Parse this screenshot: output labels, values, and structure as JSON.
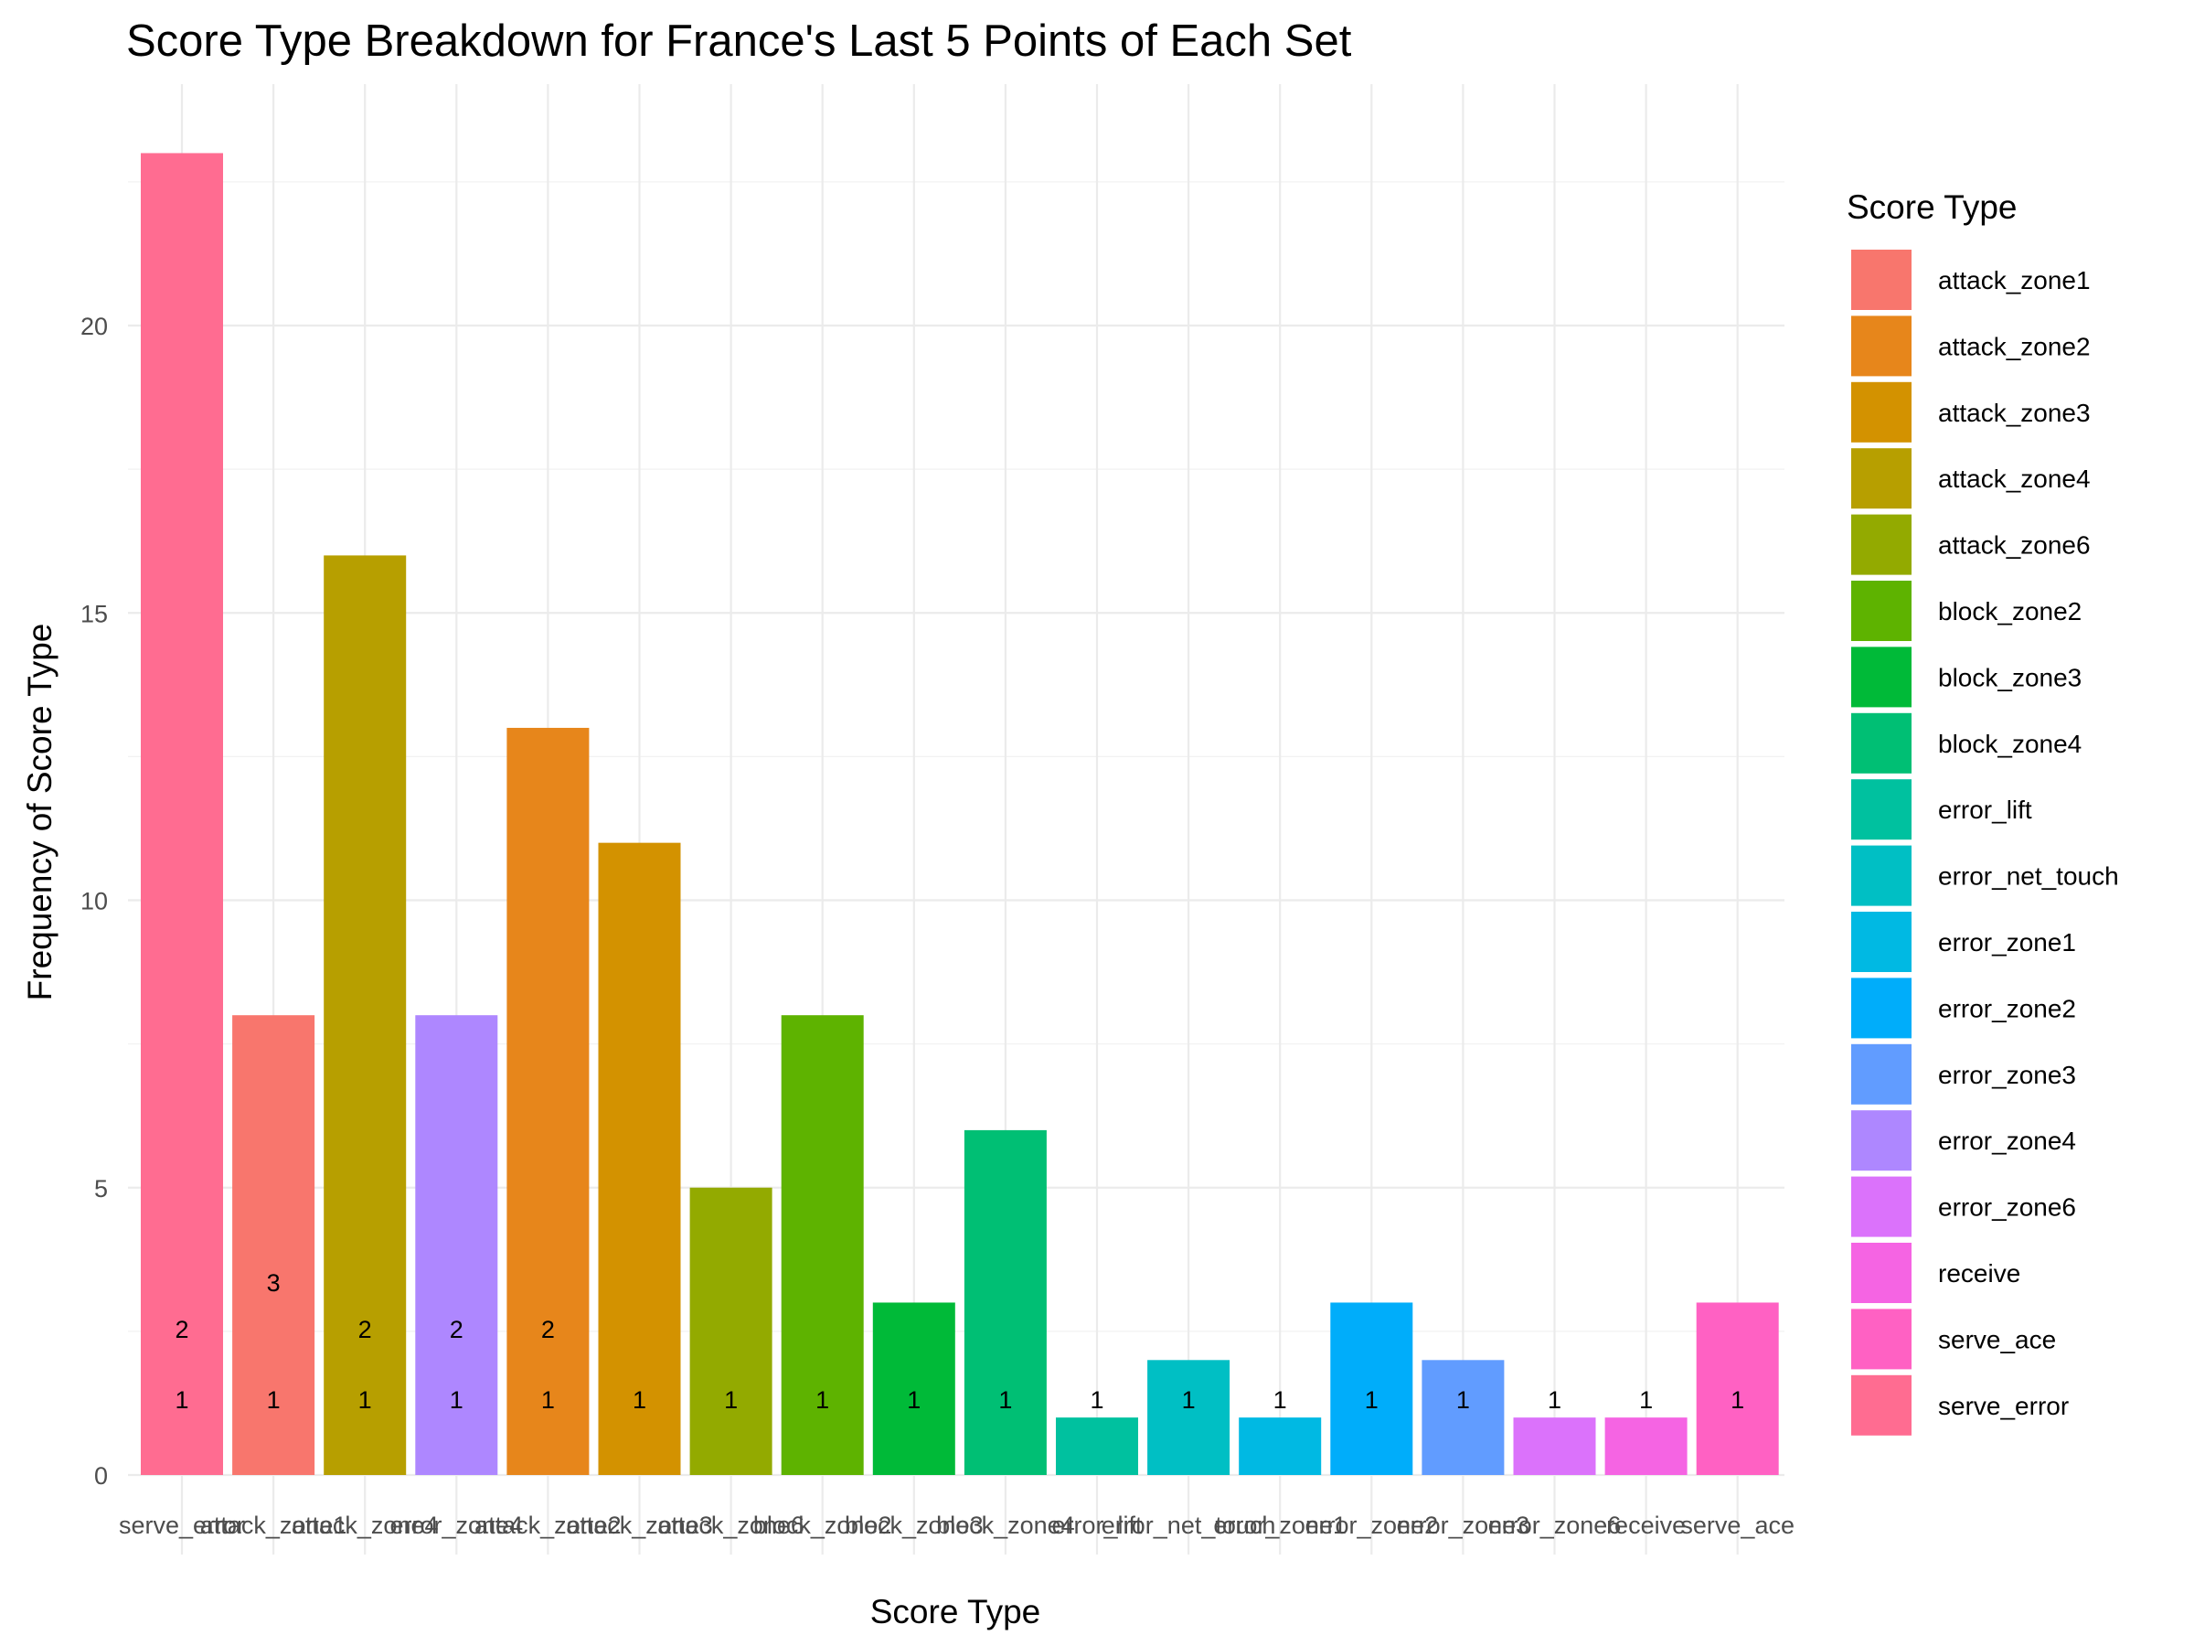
{
  "chart_data": {
    "type": "bar",
    "title": "Score Type Breakdown for France's Last 5 Points of Each Set",
    "xlabel": "Score Type",
    "ylabel": "Frequency of Score Type",
    "ylim": [
      0,
      24
    ],
    "y_ticks": [
      0,
      5,
      10,
      15,
      20
    ],
    "grid": true,
    "legend_position": "right",
    "legend_title": "Score Type",
    "legend": [
      {
        "name": "attack_zone1",
        "color": "#F8766D"
      },
      {
        "name": "attack_zone2",
        "color": "#E7861B"
      },
      {
        "name": "attack_zone3",
        "color": "#D39200"
      },
      {
        "name": "attack_zone4",
        "color": "#B79F00"
      },
      {
        "name": "attack_zone6",
        "color": "#93AA00"
      },
      {
        "name": "block_zone2",
        "color": "#5EB300"
      },
      {
        "name": "block_zone3",
        "color": "#00BA38"
      },
      {
        "name": "block_zone4",
        "color": "#00BF74"
      },
      {
        "name": "error_lift",
        "color": "#00C19F"
      },
      {
        "name": "error_net_touch",
        "color": "#00BFC4"
      },
      {
        "name": "error_zone1",
        "color": "#00B9E3"
      },
      {
        "name": "error_zone2",
        "color": "#00ADFA"
      },
      {
        "name": "error_zone3",
        "color": "#619CFF"
      },
      {
        "name": "error_zone4",
        "color": "#AE87FF"
      },
      {
        "name": "error_zone6",
        "color": "#DB72FB"
      },
      {
        "name": "receive",
        "color": "#F564E3"
      },
      {
        "name": "serve_ace",
        "color": "#FF61C3"
      },
      {
        "name": "serve_error",
        "color": "#FF6C91"
      }
    ],
    "categories": [
      "serve_error",
      "attack_zone1",
      "attack_zone4",
      "error_zone4",
      "attack_zone2",
      "attack_zone3",
      "attack_zone6",
      "block_zone2",
      "block_zone3",
      "block_zone4",
      "error_lift",
      "error_net_touch",
      "error_zone1",
      "error_zone2",
      "error_zone3",
      "error_zone6",
      "receive",
      "serve_ace"
    ],
    "values": [
      23,
      8,
      16,
      8,
      13,
      11,
      5,
      8,
      3,
      6,
      1,
      2,
      1,
      3,
      2,
      1,
      1,
      3
    ],
    "bar_colors": [
      "#FF6C91",
      "#F8766D",
      "#B79F00",
      "#AE87FF",
      "#E7861B",
      "#D39200",
      "#93AA00",
      "#5EB300",
      "#00BA38",
      "#00BF74",
      "#00C19F",
      "#00BFC4",
      "#00B9E3",
      "#00ADFA",
      "#619CFF",
      "#DB72FB",
      "#F564E3",
      "#FF61C3"
    ],
    "annotations": [
      {
        "category": "serve_error",
        "labels": [
          "1",
          "2"
        ]
      },
      {
        "category": "attack_zone1",
        "labels": [
          "1",
          "3"
        ]
      },
      {
        "category": "attack_zone4",
        "labels": [
          "1",
          "2"
        ]
      },
      {
        "category": "error_zone4",
        "labels": [
          "1",
          "2"
        ]
      },
      {
        "category": "attack_zone2",
        "labels": [
          "1",
          "2"
        ]
      },
      {
        "category": "attack_zone3",
        "labels": [
          "1"
        ]
      },
      {
        "category": "attack_zone6",
        "labels": [
          "1"
        ]
      },
      {
        "category": "block_zone2",
        "labels": [
          "1"
        ]
      },
      {
        "category": "block_zone3",
        "labels": [
          "1"
        ]
      },
      {
        "category": "block_zone4",
        "labels": [
          "1"
        ]
      },
      {
        "category": "error_lift",
        "labels": [
          "1"
        ]
      },
      {
        "category": "error_net_touch",
        "labels": [
          "1"
        ]
      },
      {
        "category": "error_zone1",
        "labels": [
          "1"
        ]
      },
      {
        "category": "error_zone2",
        "labels": [
          "1"
        ]
      },
      {
        "category": "error_zone3",
        "labels": [
          "1"
        ]
      },
      {
        "category": "error_zone6",
        "labels": [
          "1"
        ]
      },
      {
        "category": "receive",
        "labels": [
          "1"
        ]
      },
      {
        "category": "serve_ace",
        "labels": [
          "1"
        ]
      }
    ]
  }
}
